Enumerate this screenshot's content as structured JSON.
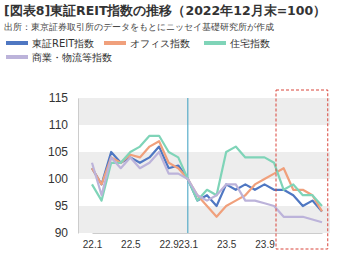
{
  "chart_data": {
    "type": "line",
    "title": "[図表8]東証REIT指数の推移（2022年12月末=100）",
    "subtitle": "出所：東京証券取引所のデータをもとにニッセイ基礎研究所が作成",
    "categories": [
      "22.1",
      null,
      null,
      null,
      "22.5",
      null,
      null,
      null,
      "22.9",
      null,
      "23.1",
      null,
      null,
      null,
      "23.5",
      null,
      null,
      null,
      "23.9",
      null,
      null,
      null,
      null,
      null,
      null
    ],
    "series": [
      {
        "name": "東証REIT指数",
        "color": "#4f77c2",
        "values": [
          102,
          99,
          105,
          103,
          104,
          103,
          104,
          106,
          102,
          102.5,
          100,
          96,
          97,
          95,
          99,
          98,
          99,
          98,
          99,
          98,
          98,
          97,
          95,
          96,
          94
        ]
      },
      {
        "name": "オフィス指数",
        "color": "#f0a07c",
        "values": [
          102,
          99,
          104,
          103,
          104.5,
          104,
          106,
          107,
          103,
          102,
          100,
          97,
          95,
          93,
          95,
          96,
          97,
          99,
          100,
          101,
          102,
          98,
          98,
          97,
          94
        ]
      },
      {
        "name": "住宅指数",
        "color": "#7fd4b8",
        "values": [
          99,
          96,
          103,
          103,
          105,
          106,
          108,
          108,
          105,
          104,
          100,
          96,
          98,
          97,
          105,
          106,
          104,
          104,
          104,
          103,
          98,
          99,
          97,
          97,
          95
        ]
      },
      {
        "name": "商業・物流等指数",
        "color": "#bcb3da",
        "values": [
          103,
          97,
          104,
          102,
          104,
          102,
          103,
          105,
          101,
          101,
          100,
          97,
          96,
          97,
          99,
          99,
          96,
          96,
          95.5,
          95,
          93,
          93,
          93,
          92.5,
          92
        ]
      }
    ],
    "ylim": [
      90,
      115
    ],
    "yticks": [
      90,
      95,
      100,
      105,
      110,
      115
    ],
    "grid": true,
    "legend": "top"
  }
}
